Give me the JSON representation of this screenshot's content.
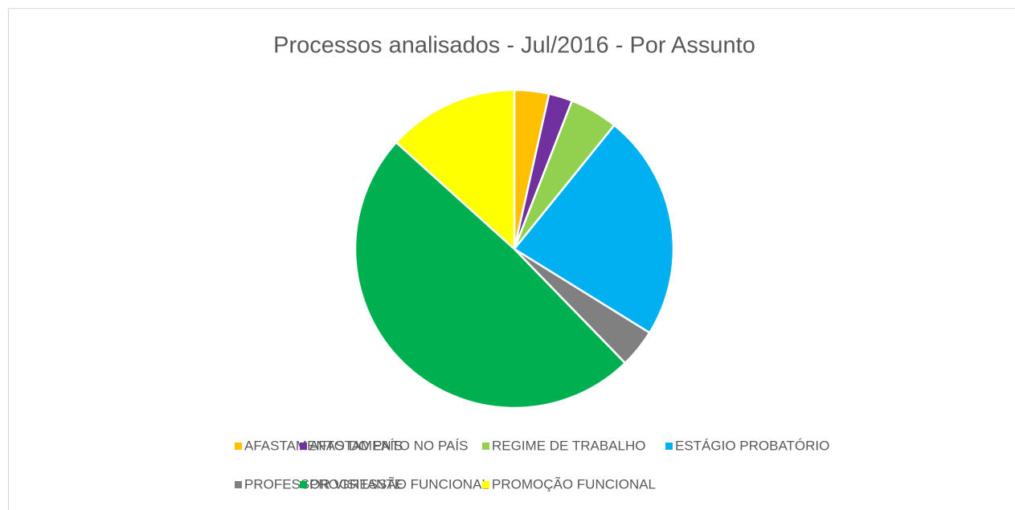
{
  "chart_data": {
    "type": "pie",
    "title": "Processos analisados - Jul/2016 - Por Assunto",
    "categories": [
      "AFASTAMENTO DO PAÍS",
      "AFASTAMENTO NO PAÍS",
      "REGIME DE TRABALHO",
      "ESTÁGIO PROBATÓRIO",
      "PROFESSOR VISITANTE",
      "PROGRESSÃO FUNCIONAL",
      "PROMOÇÃO FUNCIONAL"
    ],
    "values": [
      3.5,
      2.4,
      4.9,
      23,
      3.9,
      48.9,
      13.3
    ],
    "colors": [
      "#ffc000",
      "#7030a0",
      "#92d050",
      "#00b0f0",
      "#808080",
      "#00b050",
      "#ffff00"
    ],
    "legend": "bottom"
  }
}
